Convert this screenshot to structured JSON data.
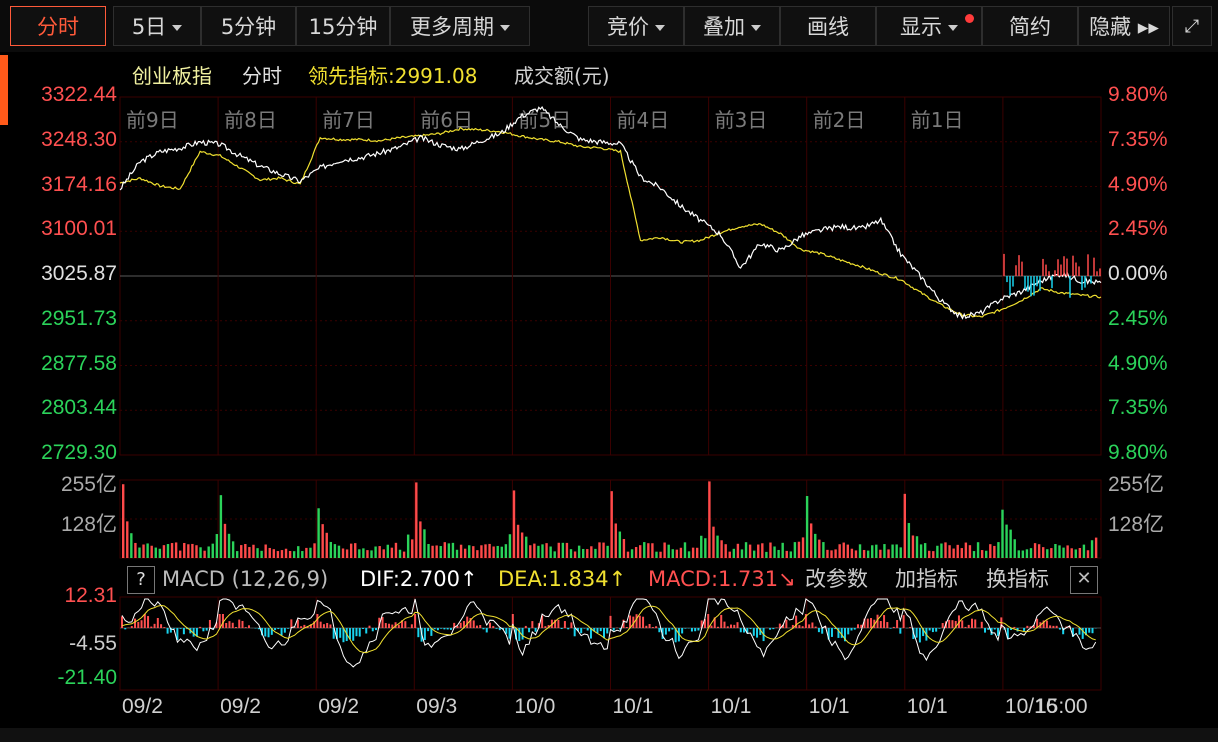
{
  "toolbar": {
    "buttons": [
      {
        "label": "分时",
        "active": true
      },
      {
        "label": "5日",
        "dropdown": true
      },
      {
        "label": "5分钟"
      },
      {
        "label": "15分钟"
      },
      {
        "label": "更多周期",
        "dropdown": true
      },
      {
        "label": "竞价",
        "dropdown": true
      },
      {
        "label": "叠加",
        "dropdown": true
      },
      {
        "label": "画线"
      },
      {
        "label": "显示",
        "dropdown": true
      },
      {
        "label": "简约"
      },
      {
        "label": "隐藏 ▸▸"
      }
    ]
  },
  "legend": {
    "name": "创业板指",
    "mode": "分时",
    "leading_label": "领先指标:2991.08",
    "volume_label": "成交额(元)"
  },
  "colors": {
    "up": "#ff4a4a",
    "down": "#2bd35a",
    "index_line": "#ffffff",
    "leading_line": "#f0e030",
    "macd_pos": "#ff5050",
    "macd_neg": "#19d3ee",
    "grid": "#3a0000",
    "accent": "#ff5a3a"
  },
  "chart_data": [
    {
      "type": "line",
      "name": "price",
      "y_left_ticks": [
        "3322.44",
        "3248.30",
        "3174.16",
        "3100.01",
        "3025.87",
        "2951.73",
        "2877.58",
        "2803.44",
        "2729.30"
      ],
      "y_right_ticks": [
        "9.80%",
        "7.35%",
        "4.90%",
        "2.45%",
        "0.00%",
        "2.45%",
        "4.90%",
        "7.35%",
        "9.80%"
      ],
      "ylim": [
        2729.3,
        3322.44
      ],
      "day_labels": [
        "前9日",
        "前8日",
        "前7日",
        "前6日",
        "前5日",
        "前4日",
        "前3日",
        "前2日",
        "前1日"
      ],
      "x_labels": [
        "09/2",
        "09/2",
        "09/2",
        "09/3",
        "10/0",
        "10/1",
        "10/1",
        "10/1",
        "10/1",
        "10/16",
        "15:00"
      ],
      "series": [
        {
          "values": [
            3170,
            3215,
            3232,
            3238,
            3248,
            3244,
            3225,
            3208,
            3195,
            3183,
            3205,
            3218,
            3222,
            3230,
            3240,
            3255,
            3243,
            3236,
            3250,
            3262,
            3290,
            3305,
            3275,
            3252,
            3248,
            3245,
            3190,
            3172,
            3142,
            3118,
            3095,
            3040,
            3080,
            3068,
            3092,
            3102,
            3108,
            3104,
            3118,
            3062,
            3025,
            2985,
            2958,
            2965,
            2988,
            3000,
            3018,
            3030,
            3018,
            3015
          ]
        },
        {
          "values": [
            3180,
            3188,
            3175,
            3170,
            3232,
            3225,
            3205,
            3185,
            3188,
            3178,
            3255,
            3252,
            3252,
            3250,
            3255,
            3258,
            3262,
            3270,
            3268,
            3265,
            3258,
            3252,
            3248,
            3240,
            3238,
            3232,
            3085,
            3090,
            3082,
            3085,
            3098,
            3108,
            3112,
            3096,
            3070,
            3063,
            3052,
            3042,
            3030,
            3020,
            2998,
            2978,
            2962,
            2958,
            2970,
            2985,
            3005,
            2998,
            2994,
            2991.08
          ]
        }
      ]
    },
    {
      "type": "bar",
      "name": "turnover",
      "y_ticks": [
        "255亿",
        "128亿"
      ],
      "ylim": [
        0,
        255
      ]
    },
    {
      "type": "bar",
      "name": "macd",
      "indicator": "MACD (12,26,9)",
      "dif_label": "DIF:2.700↑",
      "dea_label": "DEA:1.834↑",
      "macd_label": "MACD:1.731↘",
      "y_ticks": [
        "12.31",
        "-4.55",
        "-21.40"
      ],
      "ylim": [
        -21.4,
        12.31
      ],
      "actions": [
        "改参数",
        "加指标",
        "换指标"
      ]
    }
  ]
}
